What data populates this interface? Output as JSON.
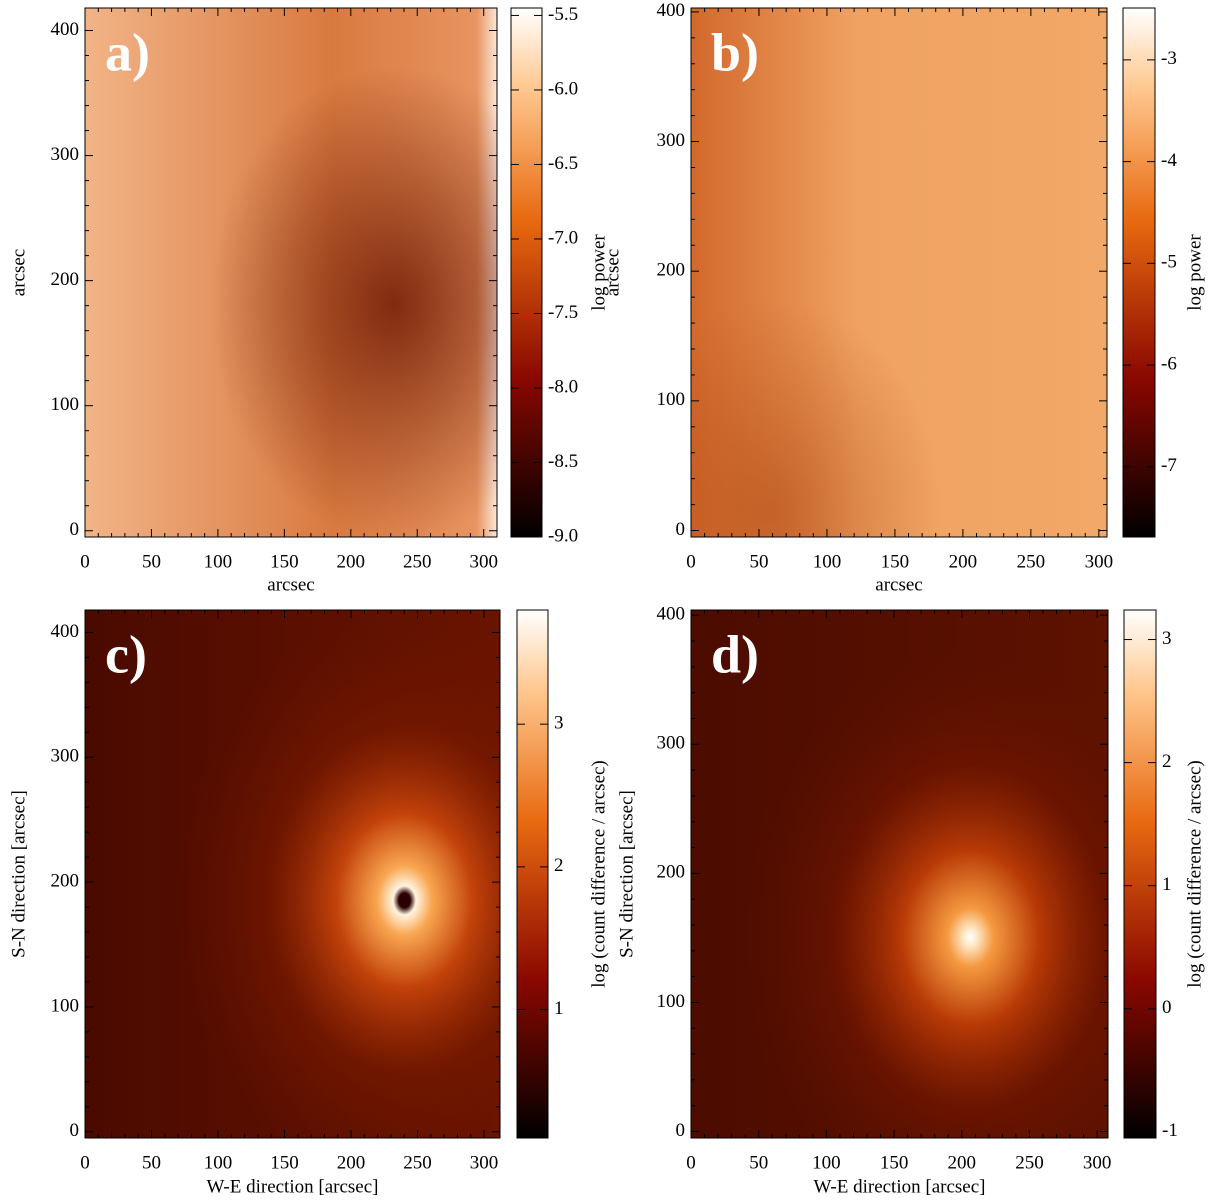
{
  "chart_data": [
    {
      "type": "image",
      "label": "a)",
      "xlabel": "arcsec",
      "ylabel": "arcsec",
      "xlim": [
        0,
        310
      ],
      "xticks": [
        0,
        50,
        100,
        150,
        200,
        250,
        300
      ],
      "ylim": [
        -5,
        418
      ],
      "yticks": [
        0,
        100,
        200,
        300,
        400
      ],
      "colorbar": {
        "label": "log power",
        "clim": [
          -9.0,
          -5.45
        ],
        "cticks": [
          -5.5,
          {
            "value": -6,
            "label": "-6.0"
          },
          -6.5,
          {
            "value": -7,
            "label": "-7.0"
          },
          -7.5,
          {
            "value": -8,
            "label": "-8.0"
          },
          -8.5,
          {
            "value": -9,
            "label": "-9.0"
          }
        ]
      }
    },
    {
      "type": "image",
      "label": "b)",
      "xlabel": "arcsec",
      "ylabel": "arcsec",
      "xlim": [
        0,
        306
      ],
      "xticks": [
        0,
        50,
        100,
        150,
        200,
        250,
        300
      ],
      "ylim": [
        -5,
        403
      ],
      "yticks": [
        0,
        100,
        200,
        300,
        400
      ],
      "colorbar": {
        "label": "log power",
        "clim": [
          -7.69,
          -2.49
        ],
        "cticks": [
          -3,
          -4,
          -5,
          -6,
          -7
        ]
      }
    },
    {
      "type": "image",
      "label": "c)",
      "xlabel": "W-E direction [arcsec]",
      "ylabel": "S-N direction [arcsec]",
      "xlim": [
        0,
        312
      ],
      "xticks": [
        0,
        50,
        100,
        150,
        200,
        250,
        300
      ],
      "ylim": [
        -5,
        418
      ],
      "yticks": [
        0,
        100,
        200,
        300,
        400
      ],
      "colorbar": {
        "label": "log (count difference / arcsec)",
        "clim": [
          0.1,
          3.8
        ],
        "cticks": [
          1,
          2,
          3
        ]
      }
    },
    {
      "type": "image",
      "label": "d)",
      "xlabel": "W-E direction [arcsec]",
      "ylabel": "S-N direction [arcsec]",
      "xlim": [
        0,
        308
      ],
      "xticks": [
        0,
        50,
        100,
        150,
        200,
        250,
        300
      ],
      "ylim": [
        -5,
        404
      ],
      "yticks": [
        0,
        100,
        200,
        300,
        400
      ],
      "colorbar": {
        "label": "log (count difference / arcsec)",
        "clim": [
          -1.05,
          3.24
        ],
        "cticks": [
          -1,
          0,
          1,
          2,
          3
        ]
      }
    }
  ]
}
